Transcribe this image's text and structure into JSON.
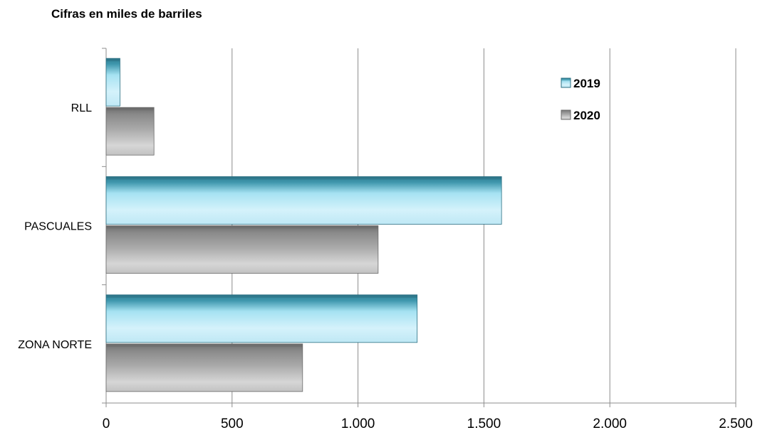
{
  "chart_data": {
    "type": "bar",
    "orientation": "horizontal",
    "title": "Cifras en miles de barriles",
    "categories": [
      "RLL",
      "PASCUALES",
      "ZONA NORTE"
    ],
    "series": [
      {
        "name": "2019",
        "values": [
          55,
          1570,
          1235
        ],
        "color": "#5fb8d0"
      },
      {
        "name": "2020",
        "values": [
          190,
          1080,
          780
        ],
        "color": "#8c8c8c"
      }
    ],
    "xlim": [
      0,
      2500
    ],
    "x_ticks": [
      0,
      500,
      1000,
      1500,
      2000,
      2500
    ],
    "x_tick_labels": [
      "0",
      "500",
      "1.000",
      "1.500",
      "2.000",
      "2.500"
    ],
    "grid": true,
    "legend_position": "top-right"
  }
}
